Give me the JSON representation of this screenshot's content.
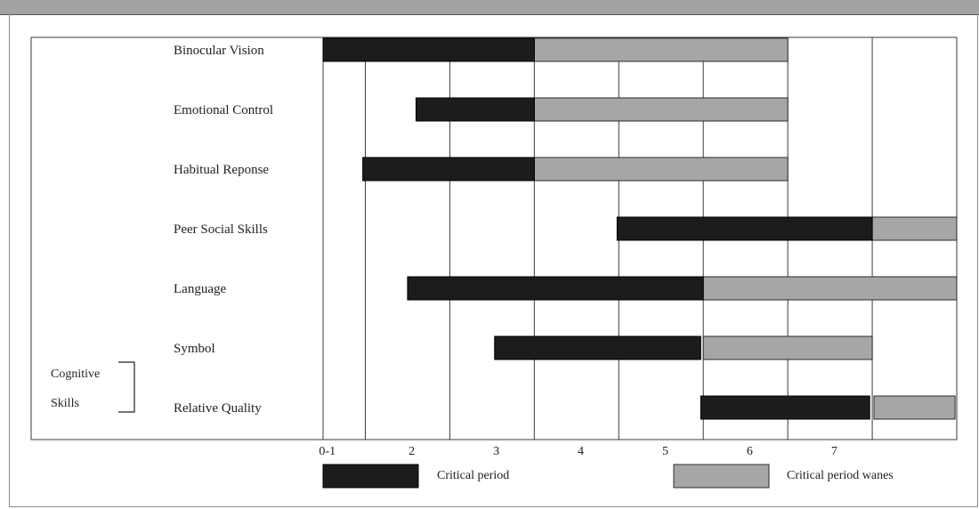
{
  "chart_data": {
    "type": "bar",
    "subtype": "horizontal-range (gantt)",
    "categories": [
      "0-1",
      "2",
      "3",
      "4",
      "5",
      "6",
      "7"
    ],
    "rows": [
      {
        "label": "Binocular Vision",
        "critical": [
          0,
          2.5
        ],
        "wanes": [
          2.5,
          5.5
        ]
      },
      {
        "label": "Emotional Control",
        "critical": [
          1.1,
          2.5
        ],
        "wanes": [
          2.5,
          5.5
        ]
      },
      {
        "label": "Habitual Reponse",
        "critical": [
          0.47,
          2.5
        ],
        "wanes": [
          2.5,
          5.5
        ]
      },
      {
        "label": "Peer Social Skills",
        "critical": [
          3.48,
          6.5
        ],
        "wanes": [
          6.5,
          7.5
        ]
      },
      {
        "label": "Language",
        "critical": [
          1.0,
          4.5
        ],
        "wanes": [
          4.5,
          7.5
        ]
      },
      {
        "label": "Symbol",
        "critical": [
          2.03,
          4.47
        ],
        "wanes": [
          4.5,
          6.5
        ]
      },
      {
        "label": "Relative Quality",
        "critical": [
          4.47,
          6.47
        ],
        "wanes": [
          6.52,
          7.48
        ]
      }
    ],
    "group_bracket": {
      "label_lines": [
        "Cognitive",
        "Skills"
      ]
    },
    "legend": [
      {
        "name": "Critical period",
        "color": "#1c1c1c"
      },
      {
        "name": "Critical period wanes",
        "color": "#a6a6a8"
      }
    ],
    "grid": true,
    "legend_position": "bottom"
  }
}
